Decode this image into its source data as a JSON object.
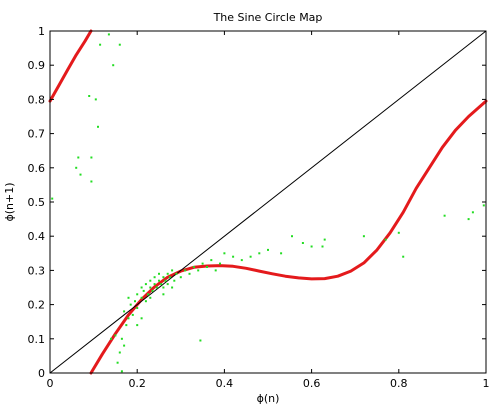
{
  "chart_data": {
    "type": "scatter",
    "title": "The Sine Circle Map",
    "xlabel": "ϕ(n)",
    "ylabel": "ϕ(n+1)",
    "xlim": [
      0,
      1
    ],
    "ylim": [
      0,
      1
    ],
    "xticks": [
      0,
      0.2,
      0.4,
      0.6,
      0.8,
      1
    ],
    "xtick_labels": [
      "0",
      "0.2",
      "0.4",
      "0.6",
      "0.8",
      "1"
    ],
    "yticks": [
      0,
      0.1,
      0.2,
      0.3,
      0.4,
      0.5,
      0.6,
      0.7,
      0.8,
      0.9,
      1
    ],
    "ytick_labels": [
      "0",
      "0.1",
      "0.2",
      "0.3",
      "0.4",
      "0.5",
      "0.6",
      "0.7",
      "0.8",
      "0.9",
      "1"
    ],
    "grid": false,
    "colors": {
      "map_curve": "#e41a1c",
      "diagonal": "#000000",
      "orbit_points": "#22dd22"
    },
    "series": [
      {
        "kind": "line",
        "role": "map_curve",
        "color": "#e41a1c",
        "segments": [
          [
            [
              0.0,
              0.795
            ],
            [
              0.02,
              0.84
            ],
            [
              0.04,
              0.885
            ],
            [
              0.06,
              0.93
            ],
            [
              0.08,
              0.97
            ],
            [
              0.094,
              1.0
            ]
          ],
          [
            [
              0.094,
              0.0
            ],
            [
              0.12,
              0.055
            ],
            [
              0.15,
              0.115
            ],
            [
              0.18,
              0.17
            ],
            [
              0.21,
              0.215
            ],
            [
              0.24,
              0.252
            ],
            [
              0.27,
              0.28
            ],
            [
              0.3,
              0.298
            ],
            [
              0.33,
              0.309
            ],
            [
              0.36,
              0.313
            ],
            [
              0.39,
              0.314
            ],
            [
              0.42,
              0.312
            ],
            [
              0.45,
              0.306
            ],
            [
              0.48,
              0.298
            ],
            [
              0.51,
              0.29
            ],
            [
              0.54,
              0.283
            ],
            [
              0.57,
              0.278
            ],
            [
              0.6,
              0.275
            ],
            [
              0.63,
              0.276
            ],
            [
              0.66,
              0.283
            ],
            [
              0.69,
              0.298
            ],
            [
              0.72,
              0.322
            ],
            [
              0.75,
              0.36
            ],
            [
              0.78,
              0.41
            ],
            [
              0.81,
              0.47
            ],
            [
              0.84,
              0.54
            ],
            [
              0.87,
              0.6
            ],
            [
              0.9,
              0.66
            ],
            [
              0.93,
              0.71
            ],
            [
              0.96,
              0.75
            ],
            [
              1.0,
              0.795
            ]
          ]
        ]
      },
      {
        "kind": "line",
        "role": "diagonal",
        "color": "#000000",
        "points": [
          [
            0,
            0
          ],
          [
            1,
            1
          ]
        ]
      },
      {
        "kind": "scatter",
        "role": "orbit_points",
        "color": "#22dd22",
        "points": [
          [
            0.005,
            0.51
          ],
          [
            0.06,
            0.6
          ],
          [
            0.065,
            0.63
          ],
          [
            0.07,
            0.58
          ],
          [
            0.09,
            0.81
          ],
          [
            0.095,
            0.63
          ],
          [
            0.095,
            0.56
          ],
          [
            0.105,
            0.8
          ],
          [
            0.11,
            0.72
          ],
          [
            0.115,
            0.96
          ],
          [
            0.135,
            0.99
          ],
          [
            0.145,
            0.9
          ],
          [
            0.16,
            0.96
          ],
          [
            0.155,
            0.03
          ],
          [
            0.16,
            0.06
          ],
          [
            0.165,
            0.1
          ],
          [
            0.17,
            0.08
          ],
          [
            0.175,
            0.14
          ],
          [
            0.17,
            0.18
          ],
          [
            0.18,
            0.16
          ],
          [
            0.185,
            0.2
          ],
          [
            0.18,
            0.22
          ],
          [
            0.19,
            0.17
          ],
          [
            0.195,
            0.21
          ],
          [
            0.2,
            0.19
          ],
          [
            0.2,
            0.23
          ],
          [
            0.21,
            0.22
          ],
          [
            0.21,
            0.25
          ],
          [
            0.215,
            0.24
          ],
          [
            0.22,
            0.21
          ],
          [
            0.22,
            0.26
          ],
          [
            0.225,
            0.23
          ],
          [
            0.23,
            0.25
          ],
          [
            0.23,
            0.27
          ],
          [
            0.235,
            0.24
          ],
          [
            0.24,
            0.26
          ],
          [
            0.24,
            0.28
          ],
          [
            0.245,
            0.25
          ],
          [
            0.25,
            0.27
          ],
          [
            0.25,
            0.29
          ],
          [
            0.255,
            0.26
          ],
          [
            0.26,
            0.28
          ],
          [
            0.26,
            0.25
          ],
          [
            0.265,
            0.27
          ],
          [
            0.27,
            0.29
          ],
          [
            0.27,
            0.26
          ],
          [
            0.275,
            0.28
          ],
          [
            0.28,
            0.3
          ],
          [
            0.285,
            0.27
          ],
          [
            0.29,
            0.29
          ],
          [
            0.2,
            0.14
          ],
          [
            0.21,
            0.16
          ],
          [
            0.23,
            0.22
          ],
          [
            0.26,
            0.23
          ],
          [
            0.28,
            0.25
          ],
          [
            0.3,
            0.28
          ],
          [
            0.31,
            0.3
          ],
          [
            0.32,
            0.29
          ],
          [
            0.33,
            0.31
          ],
          [
            0.34,
            0.3
          ],
          [
            0.35,
            0.32
          ],
          [
            0.36,
            0.31
          ],
          [
            0.37,
            0.33
          ],
          [
            0.38,
            0.3
          ],
          [
            0.39,
            0.32
          ],
          [
            0.4,
            0.35
          ],
          [
            0.42,
            0.34
          ],
          [
            0.44,
            0.33
          ],
          [
            0.46,
            0.34
          ],
          [
            0.48,
            0.35
          ],
          [
            0.345,
            0.095
          ],
          [
            0.165,
            0.005
          ],
          [
            0.15,
            0.11
          ],
          [
            0.14,
            0.1
          ],
          [
            0.5,
            0.36
          ],
          [
            0.53,
            0.35
          ],
          [
            0.555,
            0.4
          ],
          [
            0.58,
            0.38
          ],
          [
            0.6,
            0.37
          ],
          [
            0.625,
            0.37
          ],
          [
            0.63,
            0.39
          ],
          [
            0.72,
            0.4
          ],
          [
            0.77,
            0.39
          ],
          [
            0.8,
            0.41
          ],
          [
            0.81,
            0.34
          ],
          [
            0.905,
            0.46
          ],
          [
            0.96,
            0.45
          ],
          [
            0.97,
            0.47
          ],
          [
            0.995,
            0.49
          ]
        ]
      }
    ]
  }
}
